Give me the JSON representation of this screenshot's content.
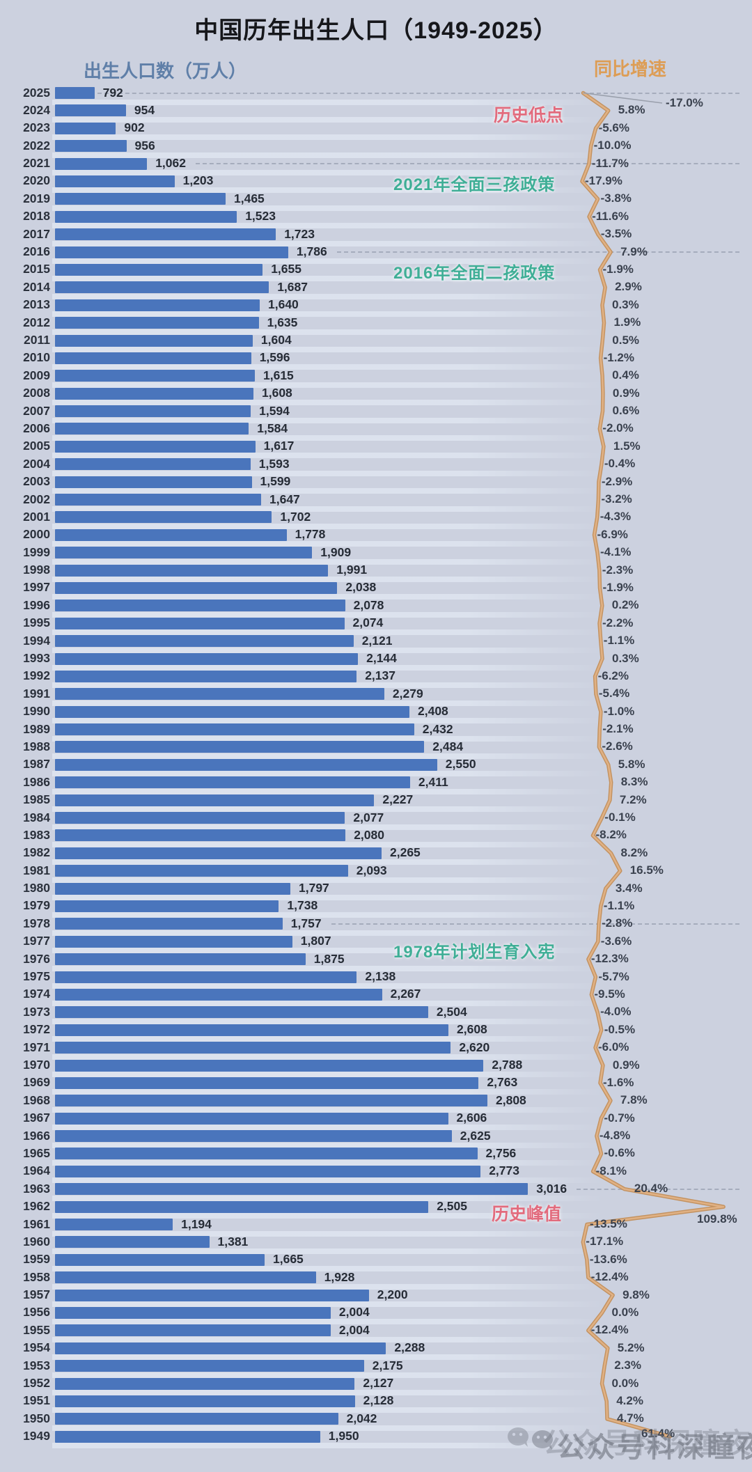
{
  "title": "中国历年出生人口（1949-2025）",
  "left_axis_label": "出生人口数（万人）",
  "right_axis_label": "同比增速",
  "watermark": "公众号科深瞳夜读",
  "wechat_icon": "wechat-icon",
  "colors": {
    "background": "#ccd1df",
    "bar": "#4a75bc",
    "left_axis_label": "#5f7fa8",
    "right_axis_label": "#dd9d55",
    "line_outer": "#c28b52",
    "line_inner": "#e0b184",
    "annotation_red": "#e26b7d",
    "annotation_teal": "#3fae96",
    "percent_text": "#3a414e",
    "callout_line": "#9aa0ac"
  },
  "chart_data": {
    "type": "bar",
    "title": "中国历年出生人口（1949-2025）",
    "xlabel": "出生人口数（万人）",
    "ylabel": "同比增速",
    "legend_position": "none",
    "grid": "dashed reference lines at annotated years only",
    "orientation": "horizontal-bars with overlaid growth-rate line",
    "x_axis_note": "bar length axis starts near 600 万人, not 0",
    "categories": [
      2025,
      2024,
      2023,
      2022,
      2021,
      2020,
      2019,
      2018,
      2017,
      2016,
      2015,
      2014,
      2013,
      2012,
      2011,
      2010,
      2009,
      2008,
      2007,
      2006,
      2005,
      2004,
      2003,
      2002,
      2001,
      2000,
      1999,
      1998,
      1997,
      1996,
      1995,
      1994,
      1993,
      1992,
      1991,
      1990,
      1989,
      1988,
      1987,
      1986,
      1985,
      1984,
      1983,
      1982,
      1981,
      1980,
      1979,
      1978,
      1977,
      1976,
      1975,
      1974,
      1973,
      1972,
      1971,
      1970,
      1969,
      1968,
      1967,
      1966,
      1965,
      1964,
      1963,
      1962,
      1961,
      1960,
      1959,
      1958,
      1957,
      1956,
      1955,
      1954,
      1953,
      1952,
      1951,
      1950,
      1949
    ],
    "series": [
      {
        "name": "出生人口数(万人)",
        "values": [
          792,
          954,
          902,
          956,
          1062,
          1203,
          1465,
          1523,
          1723,
          1786,
          1655,
          1687,
          1640,
          1635,
          1604,
          1596,
          1615,
          1608,
          1594,
          1584,
          1617,
          1593,
          1599,
          1647,
          1702,
          1778,
          1909,
          1991,
          2038,
          2078,
          2074,
          2121,
          2144,
          2137,
          2279,
          2408,
          2432,
          2484,
          2550,
          2411,
          2227,
          2077,
          2080,
          2265,
          2093,
          1797,
          1738,
          1757,
          1807,
          1875,
          2138,
          2267,
          2504,
          2608,
          2620,
          2788,
          2763,
          2808,
          2606,
          2625,
          2756,
          2773,
          3016,
          2505,
          1194,
          1381,
          1665,
          1928,
          2200,
          2004,
          2004,
          2288,
          2175,
          2127,
          2128,
          2042,
          1950
        ],
        "labels": [
          "792",
          "954",
          "902",
          "956",
          "1,062",
          "1,203",
          "1,465",
          "1,523",
          "1,723",
          "1,786",
          "1,655",
          "1,687",
          "1,640",
          "1,635",
          "1,604",
          "1,596",
          "1,615",
          "1,608",
          "1,594",
          "1,584",
          "1,617",
          "1,593",
          "1,599",
          "1,647",
          "1,702",
          "1,778",
          "1,909",
          "1,991",
          "2,038",
          "2,078",
          "2,074",
          "2,121",
          "2,144",
          "2,137",
          "2,279",
          "2,408",
          "2,432",
          "2,484",
          "2,550",
          "2,411",
          "2,227",
          "2,077",
          "2,080",
          "2,265",
          "2,093",
          "1,797",
          "1,738",
          "1,757",
          "1,807",
          "1,875",
          "2,138",
          "2,267",
          "2,504",
          "2,608",
          "2,620",
          "2,788",
          "2,763",
          "2,808",
          "2,606",
          "2,625",
          "2,756",
          "2,773",
          "3,016",
          "2,505",
          "1,194",
          "1,381",
          "1,665",
          "1,928",
          "2,200",
          "2,004",
          "2,004",
          "2,288",
          "2,175",
          "2,127",
          "2,128",
          "2,042",
          "1,950"
        ]
      },
      {
        "name": "同比增速(%)",
        "values": [
          -17.0,
          5.8,
          -5.6,
          -10.0,
          -11.7,
          -17.9,
          -3.8,
          -11.6,
          -3.5,
          7.9,
          -1.9,
          2.9,
          0.3,
          1.9,
          0.5,
          -1.2,
          0.4,
          0.9,
          0.6,
          -2.0,
          1.5,
          -0.4,
          -2.9,
          -3.2,
          -4.3,
          -6.9,
          -4.1,
          -2.3,
          -1.9,
          0.2,
          -2.2,
          -1.1,
          0.3,
          -6.2,
          -5.4,
          -1.0,
          -2.1,
          -2.6,
          5.8,
          8.3,
          7.2,
          -0.1,
          -8.2,
          8.2,
          16.5,
          3.4,
          -1.1,
          -2.8,
          -3.6,
          -12.3,
          -5.7,
          -9.5,
          -4.0,
          -0.5,
          -6.0,
          0.9,
          -1.6,
          7.8,
          -0.7,
          -4.8,
          -0.6,
          -8.1,
          20.4,
          109.8,
          -13.5,
          -17.1,
          -13.6,
          -12.4,
          9.8,
          0.0,
          -12.4,
          5.2,
          2.3,
          0.0,
          4.2,
          4.7,
          61.4
        ],
        "labels": [
          "-17.0%",
          "5.8%",
          "-5.6%",
          "-10.0%",
          "-11.7%",
          "-17.9%",
          "-3.8%",
          "-11.6%",
          "-3.5%",
          "7.9%",
          "-1.9%",
          "2.9%",
          "0.3%",
          "1.9%",
          "0.5%",
          "-1.2%",
          "0.4%",
          "0.9%",
          "0.6%",
          "-2.0%",
          "1.5%",
          "-0.4%",
          "-2.9%",
          "-3.2%",
          "-4.3%",
          "-6.9%",
          "-4.1%",
          "-2.3%",
          "-1.9%",
          "0.2%",
          "-2.2%",
          "-1.1%",
          "0.3%",
          "-6.2%",
          "-5.4%",
          "-1.0%",
          "-2.1%",
          "-2.6%",
          "5.8%",
          "8.3%",
          "7.2%",
          "-0.1%",
          "-8.2%",
          "8.2%",
          "16.5%",
          "3.4%",
          "-1.1%",
          "-2.8%",
          "-3.6%",
          "-12.3%",
          "-5.7%",
          "-9.5%",
          "-4.0%",
          "-0.5%",
          "-6.0%",
          "0.9%",
          "-1.6%",
          "7.8%",
          "-0.7%",
          "-4.8%",
          "-0.6%",
          "-8.1%",
          "20.4%",
          "109.8%",
          "-13.5%",
          "-17.1%",
          "-13.6%",
          "-12.4%",
          "9.8%",
          "0.0%",
          "-12.4%",
          "5.2%",
          "2.3%",
          "0.0%",
          "4.2%",
          "4.7%",
          "61.4%"
        ]
      }
    ],
    "annotations": [
      {
        "text": "历史低点",
        "year": 2024,
        "style": "red"
      },
      {
        "text": "2021年全面三孩政策",
        "year": 2020,
        "style": "teal"
      },
      {
        "text": "2016年全面二孩政策",
        "year": 2015,
        "style": "teal"
      },
      {
        "text": "1978年计划生育入宪",
        "year": 1977,
        "style": "teal"
      },
      {
        "text": "历史峰值",
        "year": 1962,
        "style": "red"
      }
    ],
    "dashed_reference_years": [
      2025,
      2021,
      2016,
      1978,
      1963
    ]
  }
}
